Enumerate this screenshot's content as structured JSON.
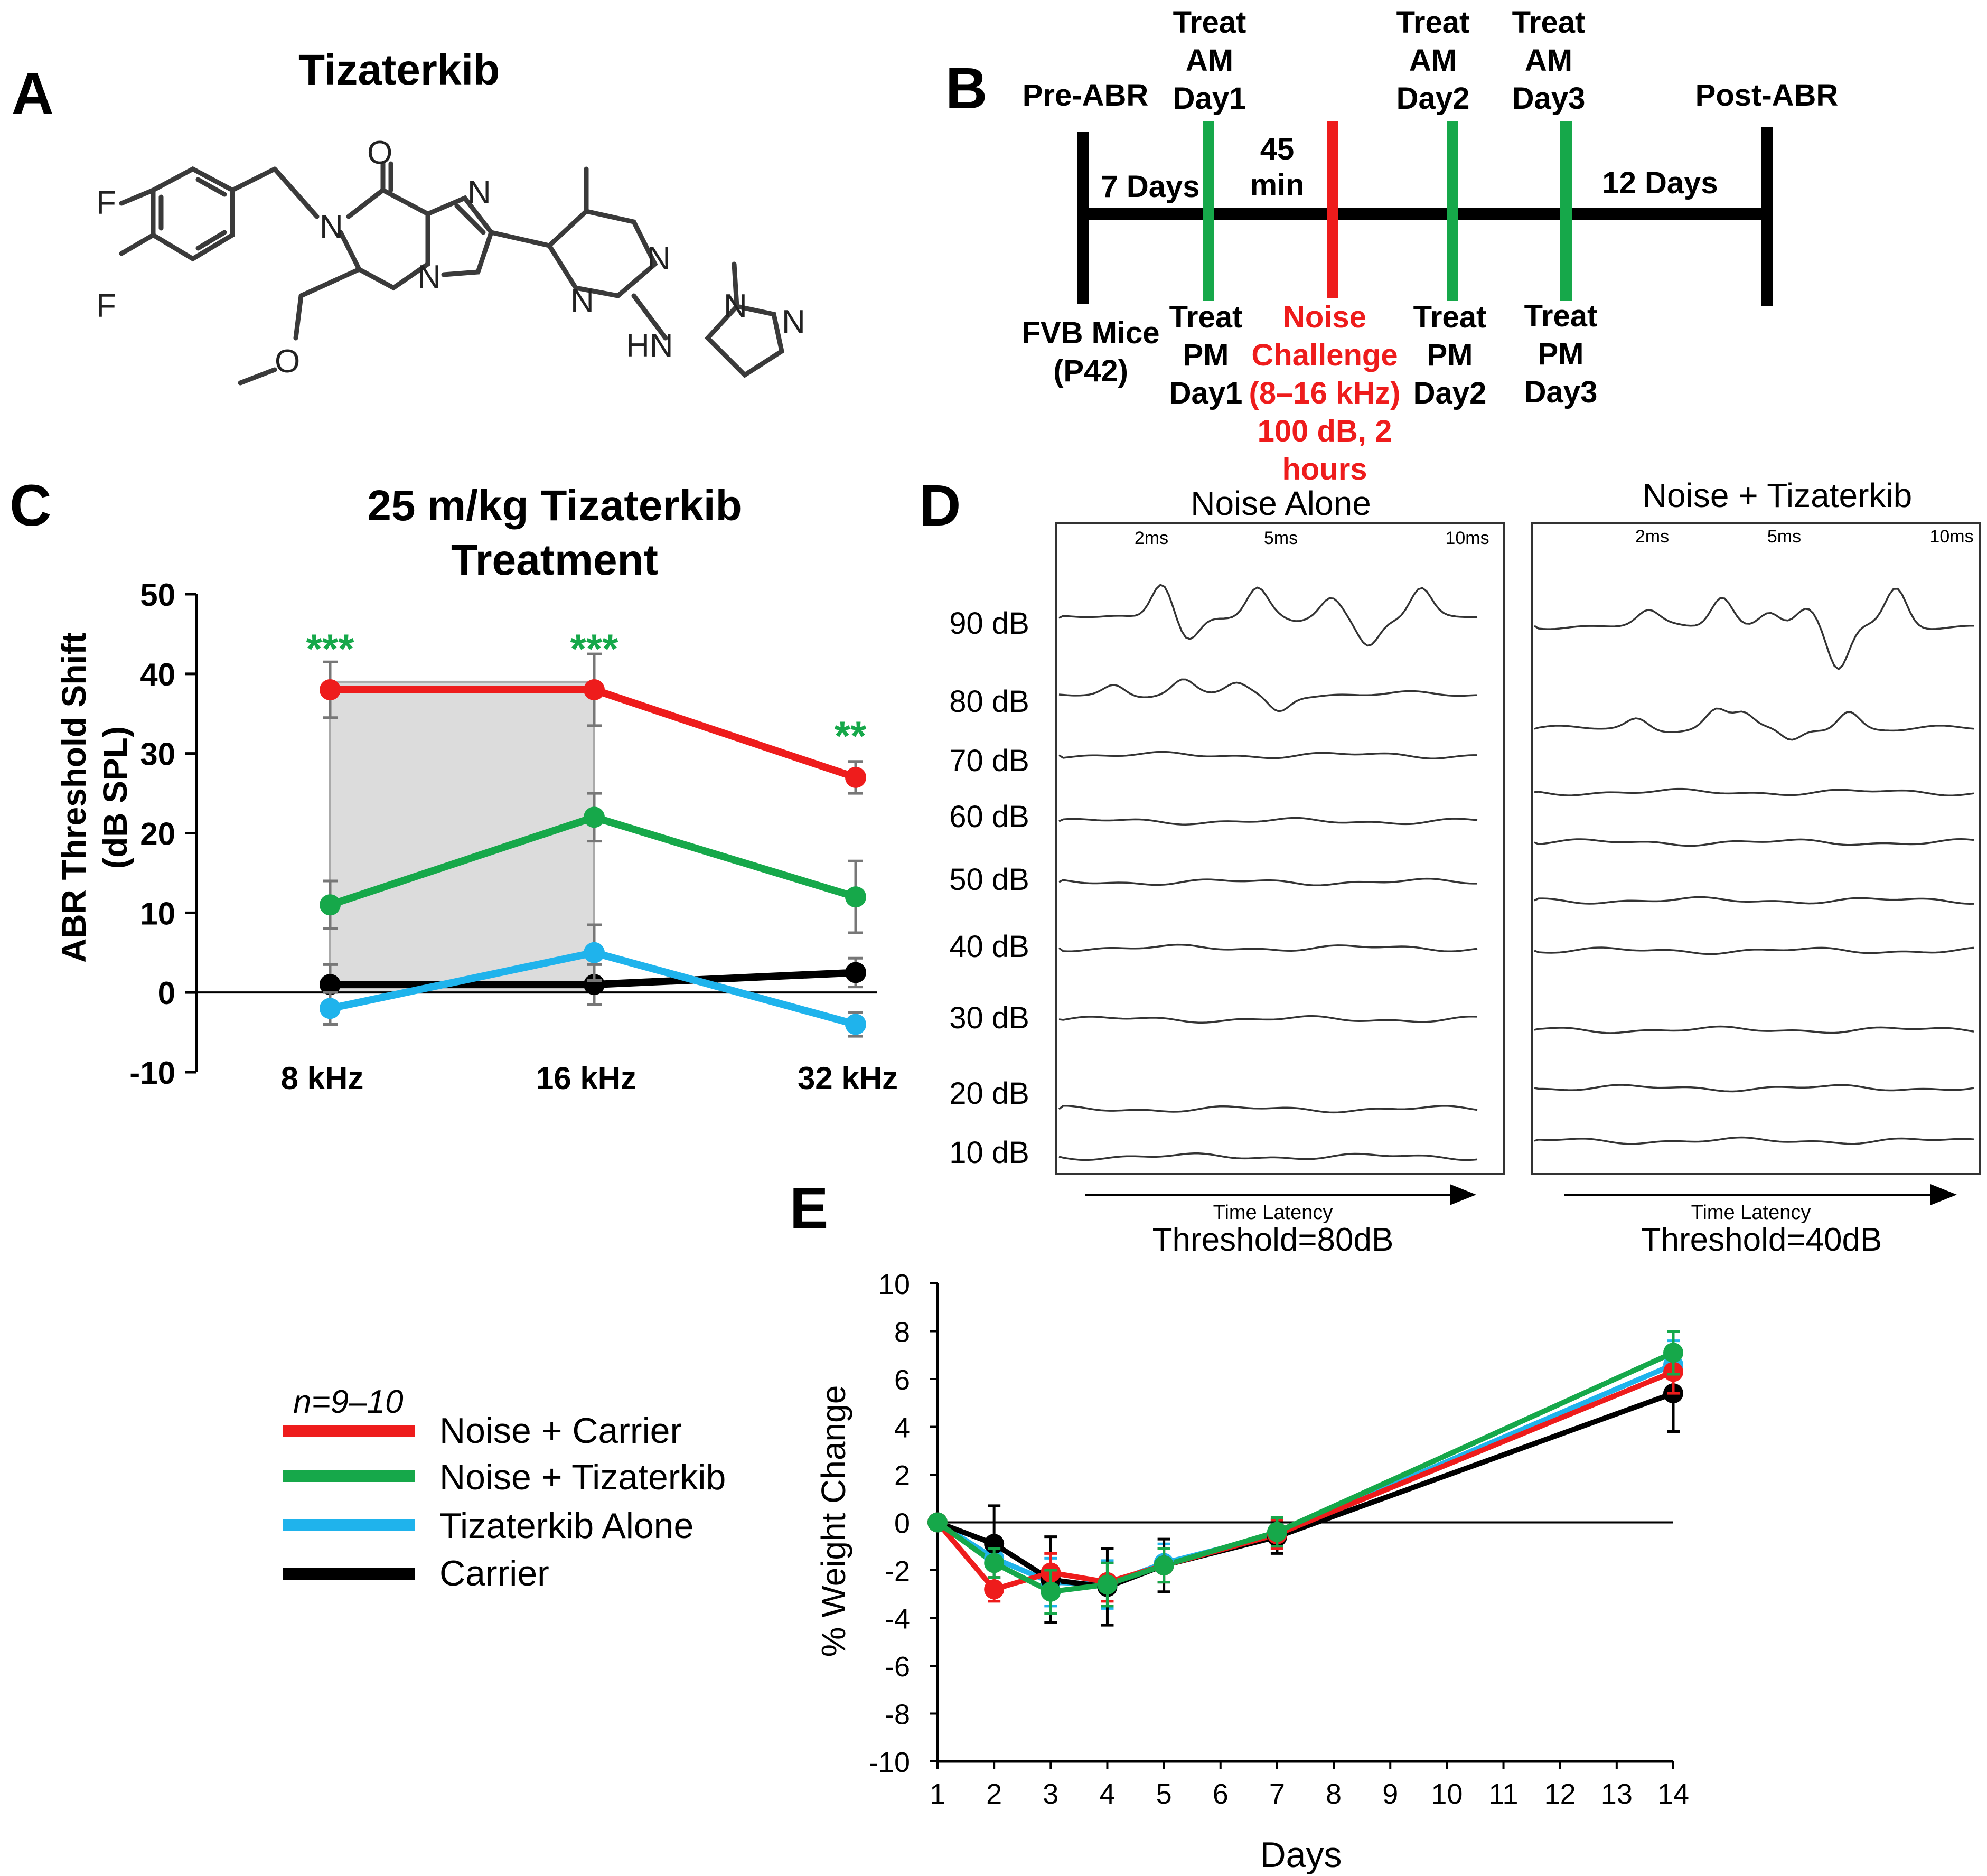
{
  "panel_a": {
    "letter": "A",
    "title": "Tizaterkib",
    "atoms": {
      "o_top": "O",
      "n_amide": "N",
      "n_imid_top": "N",
      "n_imid_bridge": "N",
      "n_pyr_right": "N",
      "n_pyr_left": "N",
      "nh": "HN",
      "n_pz1": "N",
      "n_pz2": "N",
      "o_ether": "O",
      "f_top": "F",
      "f_bottom": "F"
    }
  },
  "panel_b": {
    "letter": "B",
    "pre_abr": "Pre-ABR",
    "post_abr": "Post-ABR",
    "fvb_line1": "FVB Mice",
    "fvb_line2": "(P42)",
    "seven_days": "7 Days",
    "twelve_days": "12 Days",
    "min_line1": "45",
    "min_line2": "min",
    "treat_am": [
      {
        "l1": "Treat",
        "l2": "AM",
        "l3": "Day1"
      },
      {
        "l1": "Treat",
        "l2": "AM",
        "l3": "Day2"
      },
      {
        "l1": "Treat",
        "l2": "AM",
        "l3": "Day3"
      }
    ],
    "treat_pm": [
      {
        "l1": "Treat",
        "l2": "PM",
        "l3": "Day1"
      },
      {
        "l1": "Treat",
        "l2": "PM",
        "l3": "Day2"
      },
      {
        "l1": "Treat",
        "l2": "PM",
        "l3": "Day3"
      }
    ],
    "noise": {
      "l1": "Noise",
      "l2": "Challenge",
      "l3": "(8–16 kHz)",
      "l4": "100 dB, 2",
      "l5": "hours"
    },
    "colors": {
      "treat": "#16a84a",
      "noise": "#ee1c1c",
      "timeline": "#000000"
    }
  },
  "panel_c": {
    "letter": "C"
  },
  "panel_d": {
    "letter": "D",
    "left_title": "Noise Alone",
    "right_title": "Noise + Tizaterkib",
    "ticks": [
      "2ms",
      "5ms",
      "10ms"
    ],
    "levels": [
      "90 dB",
      "80 dB",
      "70 dB",
      "60 dB",
      "50 dB",
      "40 dB",
      "30 dB",
      "20 dB",
      "10 dB"
    ],
    "time_latency": "Time Latency",
    "left_threshold": "Threshold=80dB",
    "right_threshold": "Threshold=40dB"
  },
  "panel_e": {
    "letter": "E"
  },
  "legend": {
    "n_label": "n=9–10",
    "entries": [
      {
        "label": "Noise + Carrier",
        "color": "#ee1c1c"
      },
      {
        "label": "Noise + Tizaterkib",
        "color": "#16a84a"
      },
      {
        "label": "Tizaterkib Alone",
        "color": "#1fb3ec"
      },
      {
        "label": "Carrier",
        "color": "#000000"
      }
    ]
  },
  "chart_data": [
    {
      "type": "line",
      "title": "25 m/kg Tizaterkib Treatment",
      "title_line1": "25 m/kg Tizaterkib",
      "title_line2": "Treatment",
      "ylabel_line1": "ABR Threshold Shift",
      "ylabel_line2": "(dB SPL)",
      "categories": [
        "8 kHz",
        "16 kHz",
        "32 kHz"
      ],
      "ylim": [
        -10,
        50
      ],
      "yticks": [
        -10,
        0,
        10,
        20,
        30,
        40,
        50
      ],
      "shaded_region": [
        "8 kHz",
        "16 kHz"
      ],
      "significance": [
        {
          "category": "8 kHz",
          "label": "***"
        },
        {
          "category": "16 kHz",
          "label": "***"
        },
        {
          "category": "32 kHz",
          "label": "**"
        }
      ],
      "significance_color": "#16a84a",
      "series": [
        {
          "name": "Noise + Carrier",
          "color": "#ee1c1c",
          "values": [
            38,
            38,
            27
          ],
          "errors": [
            3.5,
            4.5,
            2
          ]
        },
        {
          "name": "Noise + Tizaterkib",
          "color": "#16a84a",
          "values": [
            11,
            22,
            12
          ],
          "errors": [
            3,
            3,
            4.5
          ]
        },
        {
          "name": "Tizaterkib Alone",
          "color": "#1fb3ec",
          "values": [
            -2,
            5,
            -4
          ],
          "errors": [
            2,
            3.5,
            1.5
          ]
        },
        {
          "name": "Carrier",
          "color": "#000000",
          "values": [
            1,
            1,
            2.5
          ],
          "errors": [
            2.5,
            2.5,
            1.8
          ]
        }
      ]
    },
    {
      "type": "line",
      "xlabel": "Days",
      "ylabel": "% Weight Change",
      "xlim": [
        1,
        14
      ],
      "xticks": [
        1,
        2,
        3,
        4,
        5,
        6,
        7,
        8,
        9,
        10,
        11,
        12,
        13,
        14
      ],
      "ylim": [
        -10,
        10
      ],
      "yticks": [
        -10,
        -8,
        -6,
        -4,
        -2,
        0,
        2,
        4,
        6,
        8,
        10
      ],
      "x": [
        1,
        2,
        3,
        4,
        5,
        7,
        14
      ],
      "series": [
        {
          "name": "Tizaterkib Alone",
          "color": "#1fb3ec",
          "values": [
            0,
            -1.5,
            -2.5,
            -2.6,
            -1.7,
            -0.5,
            6.6
          ],
          "errors": [
            0,
            0.8,
            1,
            1,
            0.8,
            0.6,
            1
          ]
        },
        {
          "name": "Carrier",
          "color": "#000000",
          "values": [
            0,
            -0.9,
            -2.4,
            -2.7,
            -1.8,
            -0.6,
            5.4
          ],
          "errors": [
            0,
            1.6,
            1.8,
            1.6,
            1.1,
            0.7,
            1.6
          ]
        },
        {
          "name": "Noise + Carrier",
          "color": "#ee1c1c",
          "values": [
            0,
            -2.8,
            -2.1,
            -2.5,
            -1.8,
            -0.5,
            6.3
          ],
          "errors": [
            0,
            0.5,
            0.8,
            0.8,
            0.7,
            0.6,
            0.9
          ]
        },
        {
          "name": "Noise + Tizaterkib",
          "color": "#16a84a",
          "values": [
            0,
            -1.7,
            -2.9,
            -2.6,
            -1.8,
            -0.4,
            7.1
          ],
          "errors": [
            0,
            0.6,
            0.9,
            0.9,
            0.7,
            0.6,
            0.9
          ]
        }
      ]
    }
  ]
}
